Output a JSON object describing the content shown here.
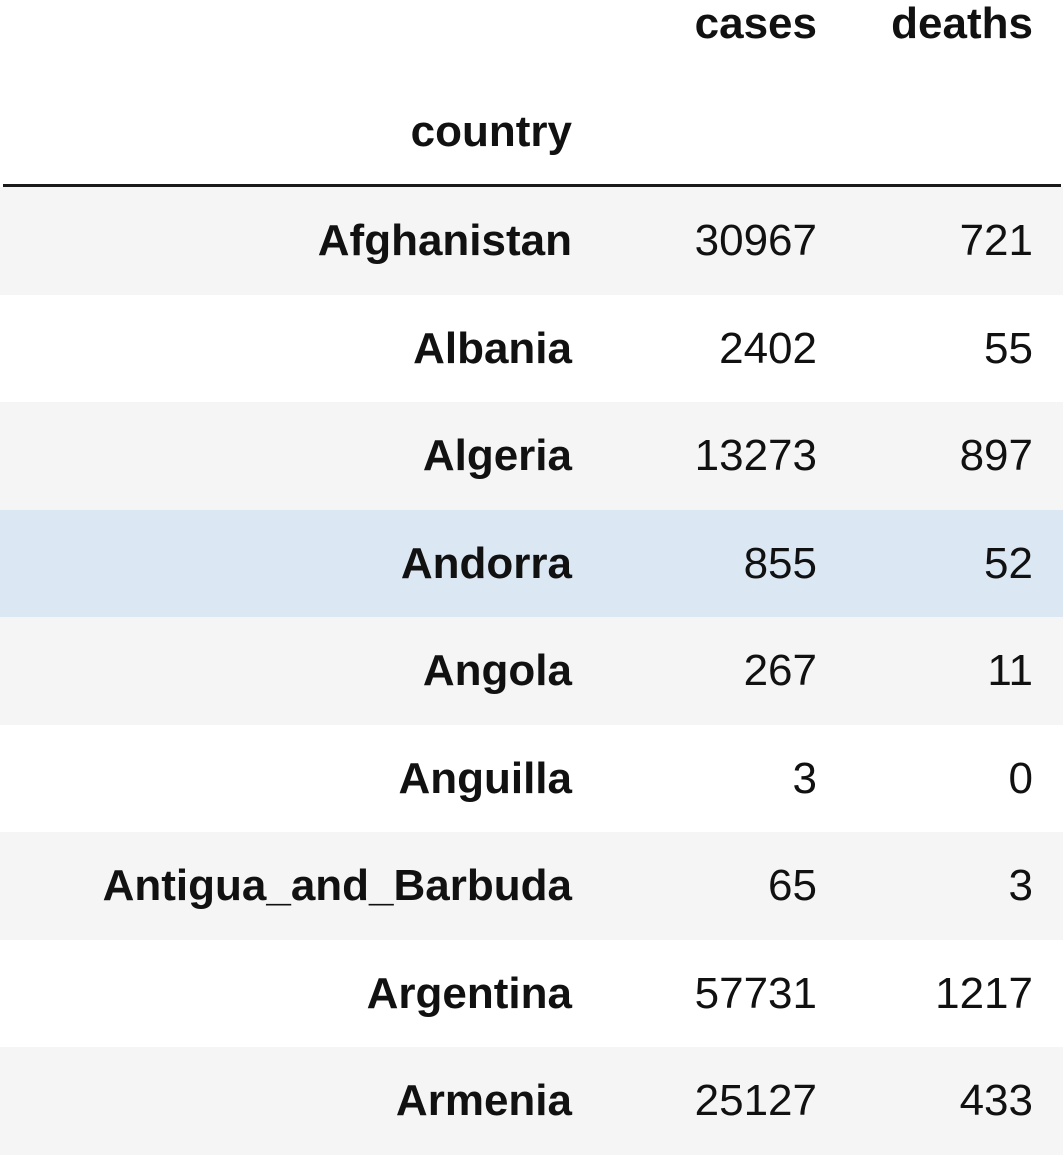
{
  "table": {
    "columns": [
      "cases",
      "deaths"
    ],
    "index_name": "country",
    "highlight_color": "#dce7f4",
    "stripe_color": "#f5f5f5",
    "rows": [
      {
        "country": "Afghanistan",
        "cases": "30967",
        "deaths": "721"
      },
      {
        "country": "Albania",
        "cases": "2402",
        "deaths": "55"
      },
      {
        "country": "Algeria",
        "cases": "13273",
        "deaths": "897"
      },
      {
        "country": "Andorra",
        "cases": "855",
        "deaths": "52"
      },
      {
        "country": "Angola",
        "cases": "267",
        "deaths": "11"
      },
      {
        "country": "Anguilla",
        "cases": "3",
        "deaths": "0"
      },
      {
        "country": "Antigua_and_Barbuda",
        "cases": "65",
        "deaths": "3"
      },
      {
        "country": "Argentina",
        "cases": "57731",
        "deaths": "1217"
      },
      {
        "country": "Armenia",
        "cases": "25127",
        "deaths": "433"
      }
    ]
  }
}
